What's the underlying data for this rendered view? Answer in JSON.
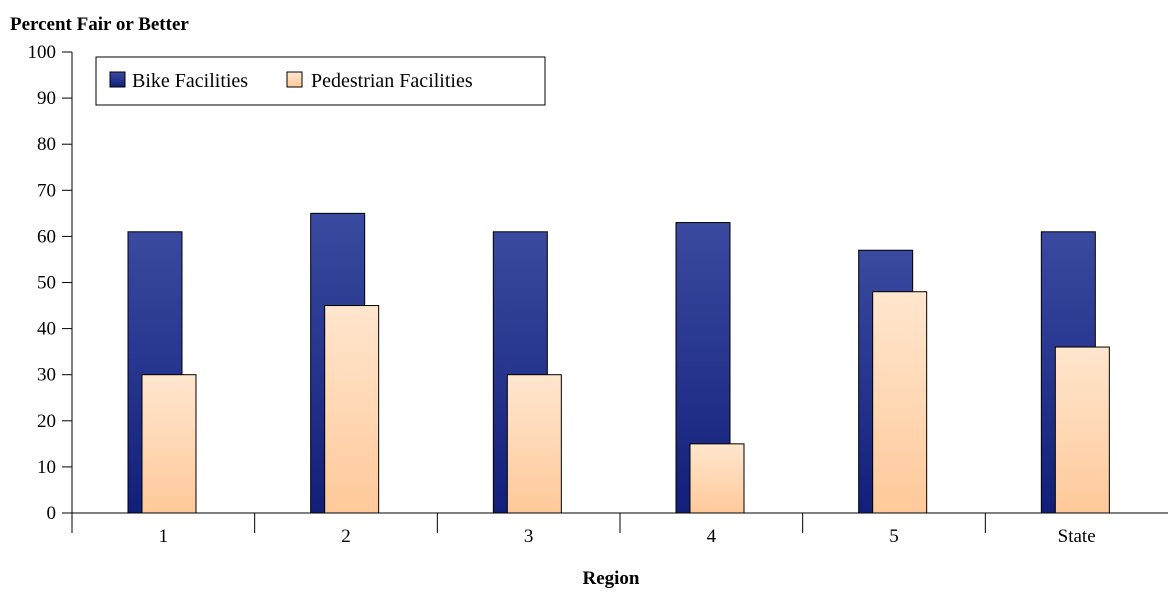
{
  "chart_data": {
    "type": "bar",
    "ylabel": "Percent Fair or Better",
    "xlabel": "Region",
    "ylim": [
      0,
      100
    ],
    "yticks": [
      0,
      10,
      20,
      30,
      40,
      50,
      60,
      70,
      80,
      90,
      100
    ],
    "categories": [
      "1",
      "2",
      "3",
      "4",
      "5",
      "State"
    ],
    "series": [
      {
        "name": "Bike Facilities",
        "values": [
          61,
          65,
          61,
          63,
          57,
          61
        ],
        "color_top": "#3a4aa0",
        "color_bottom": "#121f7a"
      },
      {
        "name": "Pedestrian Facilities",
        "values": [
          30,
          45,
          30,
          15,
          48,
          36
        ],
        "color_top": "#ffe6ce",
        "color_bottom": "#ffc99a"
      }
    ],
    "legend_position": "top-left",
    "grid": false
  }
}
